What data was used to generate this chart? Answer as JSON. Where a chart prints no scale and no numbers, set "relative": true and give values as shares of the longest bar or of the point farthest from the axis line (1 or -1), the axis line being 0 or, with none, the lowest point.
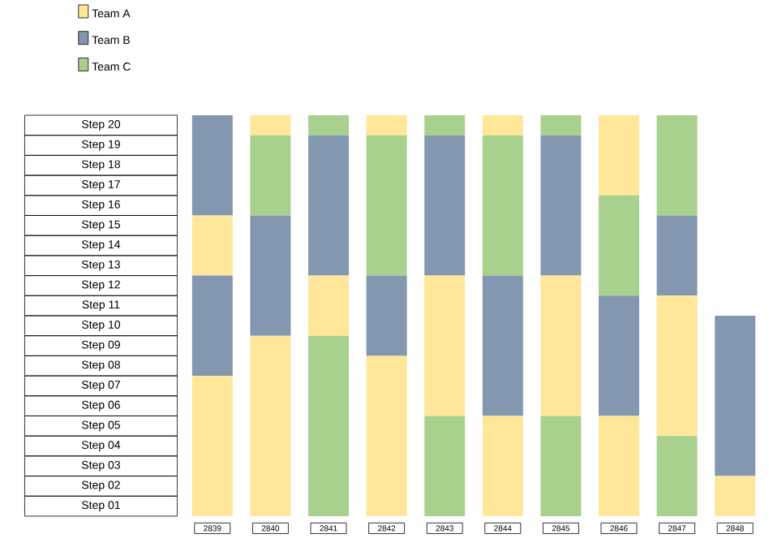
{
  "chart_data": {
    "type": "bar",
    "relative": true,
    "stacked": true,
    "categories": [
      "2839",
      "2840",
      "2841",
      "2842",
      "2843",
      "2844",
      "2845",
      "2846",
      "2847",
      "2848"
    ],
    "series": [
      {
        "name": "Team A",
        "color": "#ffe699",
        "values": [
          0.35,
          0.45,
          null,
          0.4,
          null,
          0.25,
          null,
          0.25,
          null,
          0.1
        ]
      },
      {
        "name": "Team B",
        "color": "#8497b0",
        "values": [
          0.25,
          0.3,
          null,
          0.2,
          null,
          0.35,
          null,
          0.3,
          null,
          0.4
        ]
      },
      {
        "name": "Team C",
        "color": "#a9d18e",
        "values": [
          null,
          0.2,
          0.45,
          0.35,
          0.25,
          0.35,
          0.25,
          0.25,
          0.2,
          null
        ]
      },
      {
        "color": "#ffe699",
        "values": [
          0.15,
          0.05,
          0.15,
          0.05,
          0.35,
          0.05,
          0.35,
          0.2,
          0.35,
          null
        ]
      },
      {
        "color": "#8497b0",
        "values": [
          0.25,
          null,
          0.35,
          null,
          0.35,
          null,
          0.35,
          null,
          0.2,
          null
        ]
      },
      {
        "color": "#a9d18e",
        "values": [
          null,
          null,
          0.05,
          null,
          0.05,
          null,
          0.05,
          null,
          0.25,
          null
        ]
      }
    ],
    "annotations": [
      "Step 20",
      "Step 19",
      "Step 18",
      "Step 17",
      "Step 16",
      "Step 15",
      "Step 14",
      "Step 13",
      "Step 12",
      "Step 11",
      "Step 10",
      "Step 09",
      "Step 08",
      "Step 07",
      "Step 06",
      "Step 05",
      "Step 04",
      "Step 03",
      "Step 02",
      "Step 01"
    ],
    "legend": "top left"
  }
}
